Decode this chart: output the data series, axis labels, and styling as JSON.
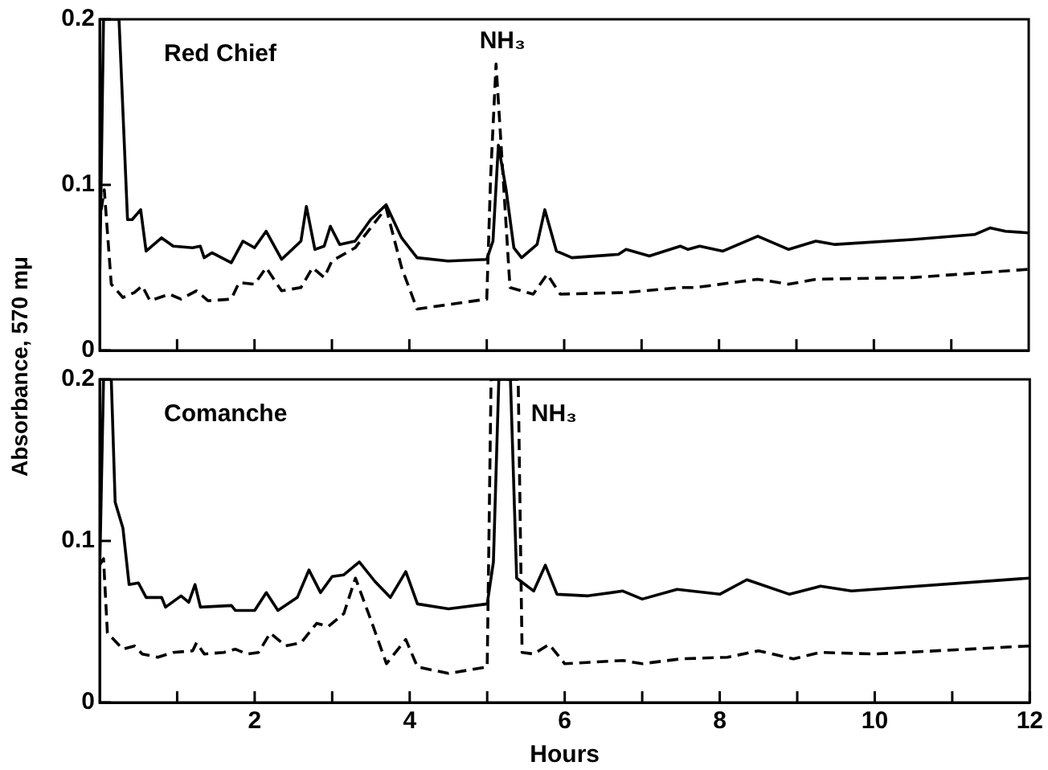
{
  "chart_data": [
    {
      "type": "line",
      "ylabel": "Absorbance, 570 mμ",
      "xlim": [
        0,
        12
      ],
      "ylim": [
        0,
        0.2
      ],
      "yticks": [
        0,
        0.1,
        0.2
      ],
      "xticks": [
        {
          "value": 1,
          "label": null
        },
        {
          "value": 2,
          "label": null
        },
        {
          "value": 3,
          "label": null
        },
        {
          "value": 4,
          "label": null
        },
        {
          "value": 5,
          "label": null
        },
        {
          "value": 6,
          "label": null
        },
        {
          "value": 7,
          "label": null
        },
        {
          "value": 8,
          "label": null
        },
        {
          "value": 9,
          "label": null
        },
        {
          "value": 10,
          "label": null
        },
        {
          "value": 11,
          "label": null
        }
      ],
      "tick_labels": "y",
      "grid": false,
      "legend": false,
      "marker": "none",
      "annotations": [
        "Red Chief",
        {
          "text": "NH₃",
          "x": 5.12,
          "y": 0.173
        }
      ],
      "series": [
        {
          "color": "#000000",
          "line_style": "solid",
          "x": [
            0,
            0.05,
            0.25,
            0.36,
            0.42,
            0.53,
            0.6,
            0.8,
            0.95,
            1.2,
            1.3,
            1.35,
            1.45,
            1.7,
            1.85,
            2.0,
            2.15,
            2.35,
            2.6,
            2.67,
            2.78,
            2.9,
            2.98,
            3.1,
            3.3,
            3.5,
            3.7,
            3.9,
            4.1,
            4.5,
            5.0,
            5.08,
            5.15,
            5.25,
            5.35,
            5.45,
            5.65,
            5.75,
            5.9,
            6.1,
            6.7,
            6.8,
            7.1,
            7.5,
            7.6,
            7.75,
            8.05,
            8.5,
            8.9,
            9.25,
            9.5,
            10.5,
            11.3,
            11.5,
            11.7,
            12
          ],
          "values": [
            0.04,
            0.2,
            0.2,
            0.079,
            0.079,
            0.085,
            0.06,
            0.068,
            0.063,
            0.062,
            0.063,
            0.056,
            0.059,
            0.053,
            0.066,
            0.062,
            0.072,
            0.055,
            0.066,
            0.087,
            0.061,
            0.063,
            0.075,
            0.064,
            0.066,
            0.079,
            0.088,
            0.068,
            0.056,
            0.054,
            0.055,
            0.066,
            0.124,
            0.097,
            0.062,
            0.056,
            0.064,
            0.085,
            0.06,
            0.056,
            0.058,
            0.061,
            0.057,
            0.063,
            0.061,
            0.063,
            0.06,
            0.069,
            0.061,
            0.066,
            0.064,
            0.067,
            0.07,
            0.074,
            0.072,
            0.071
          ]
        },
        {
          "color": "#000000",
          "line_style": "dashed",
          "x": [
            0.02,
            0.06,
            0.15,
            0.3,
            0.45,
            0.55,
            0.65,
            0.9,
            1.05,
            1.25,
            1.4,
            1.7,
            1.8,
            2.0,
            2.15,
            2.35,
            2.6,
            2.75,
            2.9,
            3.0,
            3.3,
            3.7,
            3.9,
            4.1,
            5.0,
            5.05,
            5.12,
            5.2,
            5.3,
            5.6,
            5.78,
            5.95,
            6.8,
            7.5,
            7.7,
            8.5,
            8.9,
            9.25,
            10.5,
            12
          ],
          "values": [
            0.085,
            0.097,
            0.04,
            0.032,
            0.035,
            0.039,
            0.03,
            0.034,
            0.031,
            0.036,
            0.03,
            0.031,
            0.041,
            0.04,
            0.05,
            0.036,
            0.038,
            0.05,
            0.044,
            0.054,
            0.062,
            0.086,
            0.05,
            0.025,
            0.031,
            0.105,
            0.173,
            0.113,
            0.038,
            0.034,
            0.046,
            0.034,
            0.035,
            0.038,
            0.038,
            0.043,
            0.04,
            0.043,
            0.044,
            0.049
          ]
        }
      ]
    },
    {
      "type": "line",
      "xlabel": "Hours",
      "xlim": [
        0,
        12
      ],
      "ylim": [
        0,
        0.2
      ],
      "yticks": [
        0,
        0.1,
        0.2
      ],
      "xticks": [
        {
          "value": 1,
          "label": null
        },
        2,
        {
          "value": 3,
          "label": null
        },
        4,
        {
          "value": 5,
          "label": null
        },
        6,
        {
          "value": 7,
          "label": null
        },
        8,
        {
          "value": 9,
          "label": null
        },
        10,
        {
          "value": 11,
          "label": null
        },
        12
      ],
      "grid": false,
      "legend": false,
      "marker": "none",
      "annotations": [
        "Comanche",
        {
          "text": "NH₃",
          "x": 5.4,
          "y": 0.2
        }
      ],
      "series": [
        {
          "color": "#000000",
          "line_style": "solid",
          "x": [
            0,
            0.05,
            0.15,
            0.2,
            0.3,
            0.38,
            0.5,
            0.6,
            0.8,
            0.85,
            1.05,
            1.15,
            1.23,
            1.3,
            1.7,
            1.75,
            2.0,
            2.15,
            2.3,
            2.55,
            2.7,
            2.85,
            3.0,
            3.15,
            3.35,
            3.55,
            3.75,
            3.95,
            4.1,
            4.5,
            5.0,
            5.08,
            5.15,
            5.3,
            5.38,
            5.6,
            5.75,
            5.9,
            6.3,
            6.75,
            7.0,
            7.45,
            8.0,
            8.35,
            8.9,
            9.3,
            9.7,
            12
          ],
          "values": [
            0.08,
            0.2,
            0.2,
            0.124,
            0.108,
            0.073,
            0.074,
            0.065,
            0.065,
            0.059,
            0.066,
            0.062,
            0.073,
            0.059,
            0.06,
            0.057,
            0.057,
            0.068,
            0.057,
            0.065,
            0.082,
            0.068,
            0.078,
            0.079,
            0.087,
            0.075,
            0.065,
            0.081,
            0.061,
            0.058,
            0.061,
            0.087,
            0.2,
            0.2,
            0.077,
            0.069,
            0.085,
            0.067,
            0.066,
            0.069,
            0.064,
            0.07,
            0.067,
            0.076,
            0.067,
            0.072,
            0.069,
            0.077
          ]
        },
        {
          "color": "#000000",
          "line_style": "dashed",
          "x": [
            0,
            0.05,
            0.1,
            0.3,
            0.45,
            0.55,
            0.75,
            0.95,
            1.2,
            1.25,
            1.35,
            1.6,
            1.75,
            1.9,
            2.05,
            2.2,
            2.4,
            2.6,
            2.8,
            2.95,
            3.15,
            3.3,
            3.5,
            3.7,
            3.95,
            4.1,
            4.5,
            5.0,
            5.05,
            5.4,
            5.45,
            5.6,
            5.8,
            6.0,
            6.75,
            7.0,
            7.5,
            8.1,
            8.5,
            8.95,
            9.3,
            10,
            12
          ],
          "values": [
            0.085,
            0.089,
            0.043,
            0.033,
            0.035,
            0.03,
            0.028,
            0.031,
            0.032,
            0.037,
            0.03,
            0.031,
            0.033,
            0.03,
            0.031,
            0.043,
            0.035,
            0.037,
            0.049,
            0.047,
            0.055,
            0.077,
            0.051,
            0.024,
            0.039,
            0.022,
            0.018,
            0.022,
            0.2,
            0.2,
            0.031,
            0.03,
            0.036,
            0.024,
            0.026,
            0.024,
            0.027,
            0.028,
            0.032,
            0.027,
            0.031,
            0.03,
            0.035
          ]
        }
      ]
    }
  ]
}
